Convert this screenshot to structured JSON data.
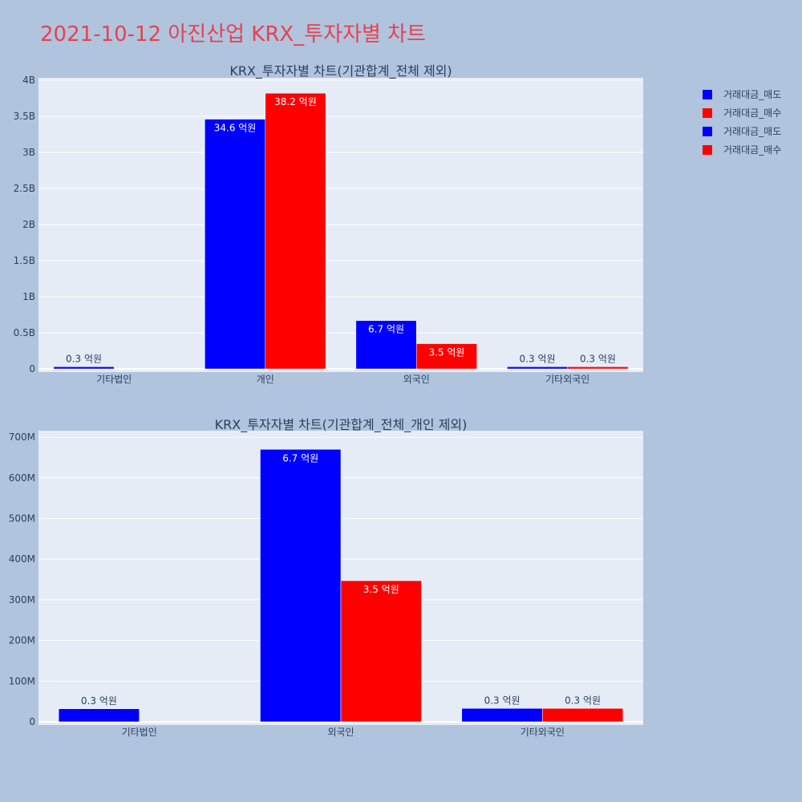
{
  "page": {
    "title": "2021-10-12 아진산업 KRX_투자자별 차트",
    "title_color": "#e8414e",
    "background": "#b0c4de",
    "plot_background": "#e5ecf6"
  },
  "legend": {
    "items": [
      {
        "label": "거래대금_매도",
        "color": "#0000ff"
      },
      {
        "label": "거래대금_매수",
        "color": "#ff0000"
      },
      {
        "label": "거래대금_매도",
        "color": "#0000ff"
      },
      {
        "label": "거래대금_매수",
        "color": "#ff0000"
      }
    ]
  },
  "chart_data": [
    {
      "type": "bar",
      "title": "KRX_투자자별 차트(기관합계_전체 제외)",
      "categories": [
        "기타법인",
        "개인",
        "외국인",
        "기타외국인"
      ],
      "ylim": [
        0,
        4000000000
      ],
      "yticks": [
        0,
        500000000,
        1000000000,
        1500000000,
        2000000000,
        2500000000,
        3000000000,
        3500000000,
        4000000000
      ],
      "ytick_labels": [
        "0",
        "0.5B",
        "1B",
        "1.5B",
        "2B",
        "2.5B",
        "3B",
        "3.5B",
        "4B"
      ],
      "grid": true,
      "series": [
        {
          "name": "거래대금_매도",
          "color": "#0000ff",
          "values": [
            30000000,
            3460000000,
            670000000,
            30000000
          ],
          "labels": [
            "0.3 억원",
            "34.6 억원",
            "6.7 억원",
            "0.3 억원"
          ]
        },
        {
          "name": "거래대금_매수",
          "color": "#ff0000",
          "values": [
            0,
            3820000000,
            350000000,
            30000000
          ],
          "labels": [
            "",
            "38.2 억원",
            "3.5 억원",
            "0.3 억원"
          ]
        }
      ]
    },
    {
      "type": "bar",
      "title": "KRX_투자자별 차트(기관합계_전체_개인 제외)",
      "categories": [
        "기타법인",
        "외국인",
        "기타외국인"
      ],
      "ylim": [
        0,
        710000000
      ],
      "yticks": [
        0,
        100000000,
        200000000,
        300000000,
        400000000,
        500000000,
        600000000,
        700000000
      ],
      "ytick_labels": [
        "0",
        "100M",
        "200M",
        "300M",
        "400M",
        "500M",
        "600M",
        "700M"
      ],
      "grid": true,
      "series": [
        {
          "name": "거래대금_매도",
          "color": "#0000ff",
          "values": [
            32000000,
            670000000,
            33000000
          ],
          "labels": [
            "0.3 억원",
            "6.7 억원",
            "0.3 억원"
          ]
        },
        {
          "name": "거래대금_매수",
          "color": "#ff0000",
          "values": [
            0,
            347000000,
            33000000
          ],
          "labels": [
            "",
            "3.5 억원",
            "0.3 억원"
          ]
        }
      ]
    }
  ]
}
